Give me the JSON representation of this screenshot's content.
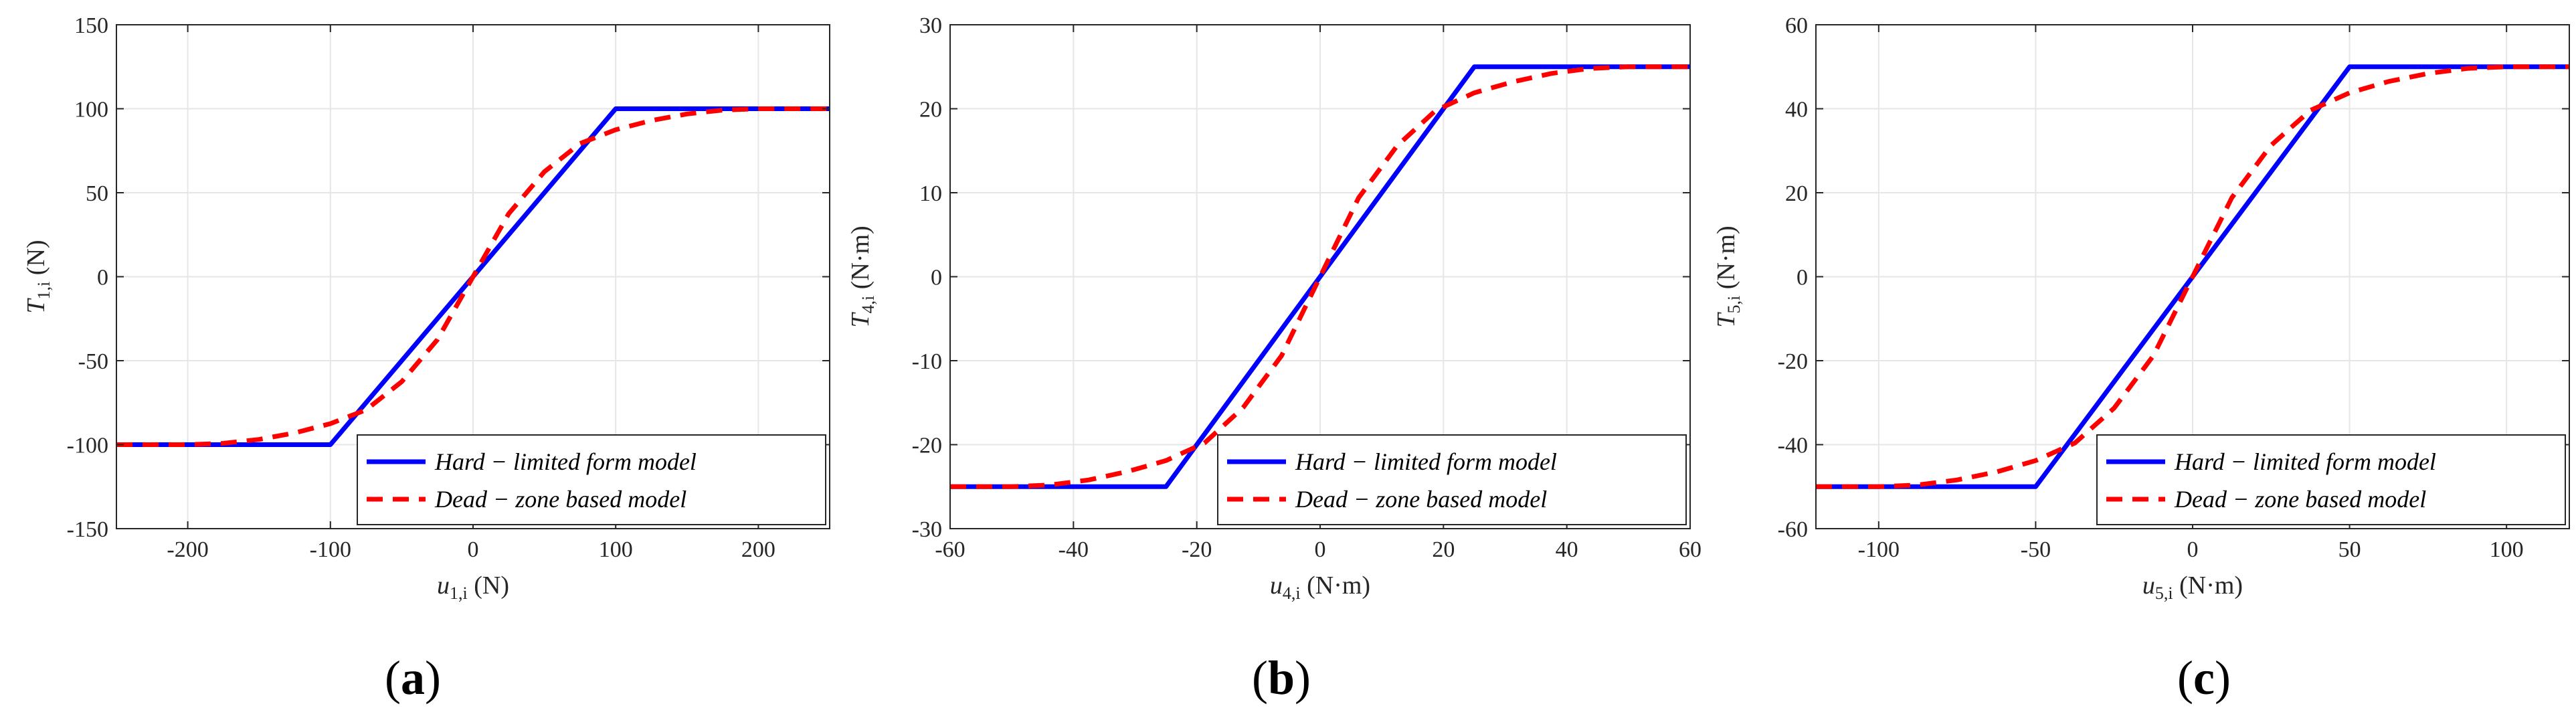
{
  "chart_data": [
    {
      "type": "line",
      "panel": "a",
      "caption": "a",
      "xlabel": {
        "symbol": "u",
        "subscript": "1,i",
        "unit": " (N)"
      },
      "ylabel": {
        "symbol": "T",
        "subscript": "1,i",
        "unit": " (N)"
      },
      "xlim": [
        -250,
        250
      ],
      "ylim": [
        -150,
        150
      ],
      "xticks": [
        -200,
        -100,
        0,
        100,
        200
      ],
      "yticks": [
        -150,
        -100,
        -50,
        0,
        50,
        100,
        150
      ],
      "xtick_labels": [
        "-200",
        "-100",
        "0",
        "100",
        "200"
      ],
      "ytick_labels": [
        "-150",
        "-100",
        "-50",
        "0",
        "50",
        "100",
        "150"
      ],
      "grid": true,
      "legend_placement": "bottom-right",
      "saturation": 100,
      "series": [
        {
          "name": "Hard − limited form model",
          "color": "#0000ff",
          "style": "solid",
          "x": [
            -250,
            -100,
            100,
            250
          ],
          "y": [
            -100,
            -100,
            100,
            100
          ]
        },
        {
          "name": "Dead − zone based model",
          "color": "#ff0000",
          "style": "dashed",
          "x": [
            -250,
            -200,
            -175,
            -150,
            -125,
            -100,
            -75,
            -50,
            -25,
            0,
            25,
            50,
            75,
            100,
            125,
            150,
            175,
            200,
            250
          ],
          "y": [
            -100,
            -100,
            -99.2,
            -96.9,
            -93.0,
            -87.5,
            -79.3,
            -62.5,
            -37.5,
            0,
            37.5,
            62.5,
            79.3,
            87.5,
            93.0,
            96.9,
            99.2,
            100,
            100
          ]
        }
      ]
    },
    {
      "type": "line",
      "panel": "b",
      "caption": "b",
      "xlabel": {
        "symbol": "u",
        "subscript": "4,i",
        "unit": " (N·m)"
      },
      "ylabel": {
        "symbol": "T",
        "subscript": "4,i",
        "unit": " (N·m)"
      },
      "xlim": [
        -60,
        60
      ],
      "ylim": [
        -30,
        30
      ],
      "xticks": [
        -60,
        -40,
        -20,
        0,
        20,
        40,
        60
      ],
      "yticks": [
        -30,
        -20,
        -10,
        0,
        10,
        20,
        30
      ],
      "xtick_labels": [
        "-60",
        "-40",
        "-20",
        "0",
        "20",
        "40",
        "60"
      ],
      "ytick_labels": [
        "-30",
        "-20",
        "-10",
        "0",
        "10",
        "20",
        "30"
      ],
      "grid": true,
      "legend_placement": "bottom-right",
      "saturation": 25,
      "series": [
        {
          "name": "Hard − limited form model",
          "color": "#0000ff",
          "style": "solid",
          "x": [
            -60,
            -25,
            25,
            60
          ],
          "y": [
            -25,
            -25,
            25,
            25
          ]
        },
        {
          "name": "Dead − zone based model",
          "color": "#ff0000",
          "style": "dashed",
          "x": [
            -60,
            -50,
            -43.75,
            -37.5,
            -31.25,
            -25,
            -18.75,
            -12.5,
            -6.25,
            0,
            6.25,
            12.5,
            18.75,
            25,
            31.25,
            37.5,
            43.75,
            50,
            60
          ],
          "y": [
            -25,
            -25,
            -24.8,
            -24.2,
            -23.2,
            -21.9,
            -19.8,
            -15.6,
            -9.4,
            0,
            9.4,
            15.6,
            19.8,
            21.9,
            23.2,
            24.2,
            24.8,
            25,
            25
          ]
        }
      ]
    },
    {
      "type": "line",
      "panel": "c",
      "caption": "c",
      "xlabel": {
        "symbol": "u",
        "subscript": "5,i",
        "unit": " (N·m)"
      },
      "ylabel": {
        "symbol": "T",
        "subscript": "5,i",
        "unit": " (N·m)"
      },
      "xlim": [
        -120,
        120
      ],
      "ylim": [
        -60,
        60
      ],
      "xticks": [
        -100,
        -50,
        0,
        50,
        100
      ],
      "yticks": [
        -60,
        -40,
        -20,
        0,
        20,
        40,
        60
      ],
      "xtick_labels": [
        "-100",
        "-50",
        "0",
        "50",
        "100"
      ],
      "ytick_labels": [
        "-60",
        "-40",
        "-20",
        "0",
        "20",
        "40",
        "60"
      ],
      "grid": true,
      "legend_placement": "bottom-right",
      "saturation": 50,
      "series": [
        {
          "name": "Hard − limited form model",
          "color": "#0000ff",
          "style": "solid",
          "x": [
            -120,
            -50,
            50,
            120
          ],
          "y": [
            -50,
            -50,
            50,
            50
          ]
        },
        {
          "name": "Dead − zone based model",
          "color": "#ff0000",
          "style": "dashed",
          "x": [
            -120,
            -100,
            -87.5,
            -75,
            -62.5,
            -50,
            -37.5,
            -25,
            -12.5,
            0,
            12.5,
            25,
            37.5,
            50,
            62.5,
            75,
            87.5,
            100,
            120
          ],
          "y": [
            -50,
            -50,
            -49.6,
            -48.4,
            -46.5,
            -43.8,
            -39.6,
            -31.3,
            -18.8,
            0,
            18.8,
            31.3,
            39.6,
            43.8,
            46.5,
            48.4,
            49.6,
            50,
            50
          ]
        }
      ]
    }
  ]
}
